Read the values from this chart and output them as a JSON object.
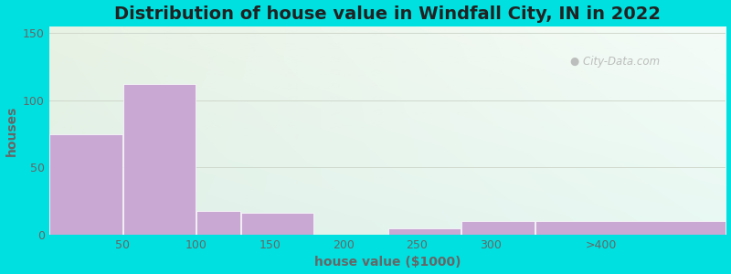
{
  "title": "Distribution of house value in Windfall City, IN in 2022",
  "xlabel": "house value ($1000)",
  "ylabel": "houses",
  "bar_heights": [
    75,
    112,
    18,
    16,
    0,
    5,
    10,
    10
  ],
  "bin_edges": [
    0,
    50,
    100,
    130,
    180,
    230,
    280,
    330,
    460
  ],
  "bar_color": "#c9a8d4",
  "xtick_labels": [
    "50",
    "100",
    "150",
    "200",
    "250",
    "300",
    ">400"
  ],
  "xtick_positions": [
    50,
    100,
    150,
    200,
    250,
    300,
    375
  ],
  "ytick_positions": [
    0,
    50,
    100,
    150
  ],
  "ylim": [
    0,
    155
  ],
  "xlim": [
    0,
    460
  ],
  "bg_outer": "#00e0e0",
  "bg_top_left": "#e8f2e4",
  "bg_top_right": "#f5fcf8",
  "bg_bottom_left": "#dff0e8",
  "bg_bottom_right": "#e8f8f2",
  "grid_color": "#d0d8cc",
  "title_fontsize": 14,
  "label_fontsize": 10,
  "tick_fontsize": 9,
  "title_color": "#222222",
  "label_color": "#666666",
  "tick_color": "#666666"
}
